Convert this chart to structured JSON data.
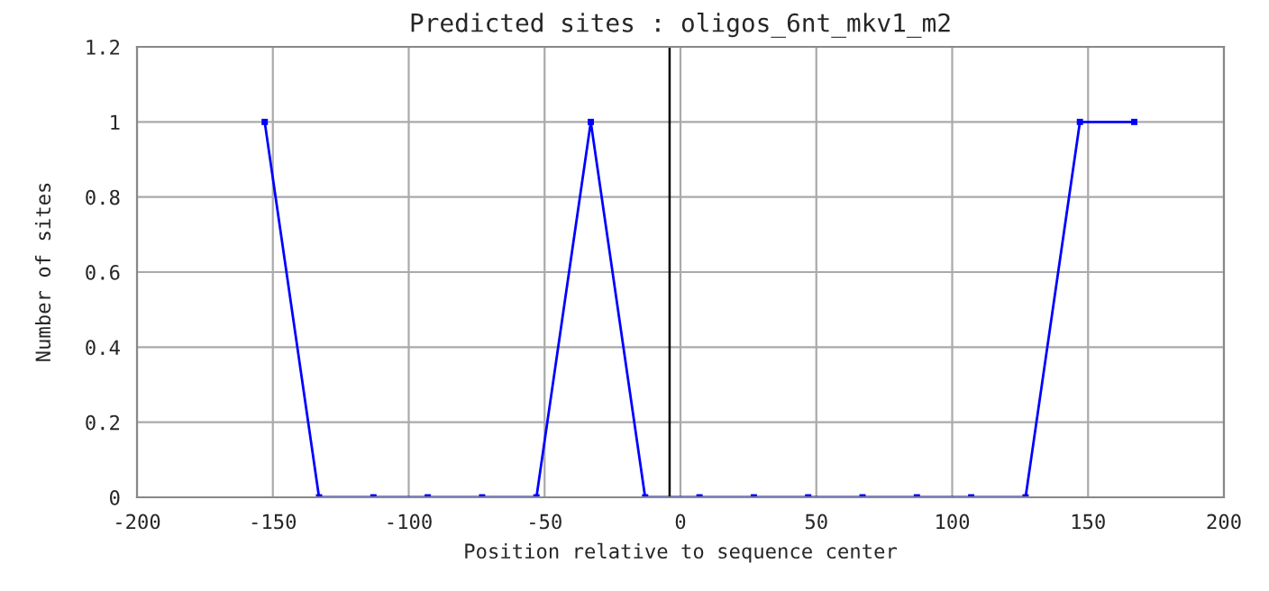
{
  "chart_data": {
    "type": "line",
    "title": "Predicted sites : oligos_6nt_mkv1_m2",
    "xlabel": "Position relative to sequence center",
    "ylabel": "Number of sites",
    "x": [
      -153,
      -133,
      -113,
      -93,
      -73,
      -53,
      -33,
      -13,
      7,
      27,
      47,
      67,
      87,
      107,
      127,
      147,
      167
    ],
    "series": [
      {
        "color": "#0000ff",
        "values": [
          1,
          0,
          0,
          0,
          0,
          0,
          1,
          0,
          0,
          0,
          0,
          0,
          0,
          0,
          0,
          1,
          1
        ]
      }
    ],
    "xlim": [
      -200,
      200
    ],
    "xticks": [
      -200,
      -150,
      -100,
      -50,
      0,
      50,
      100,
      150,
      200
    ],
    "ylim": [
      0,
      1.2
    ],
    "yticks": [
      0,
      0.2,
      0.4,
      0.6,
      0.8,
      1,
      1.2
    ],
    "ref_lines": [
      {
        "axis": "x",
        "value": -4,
        "color": "#000000"
      }
    ],
    "grid": true,
    "marker": "square",
    "line_style": "solid"
  }
}
